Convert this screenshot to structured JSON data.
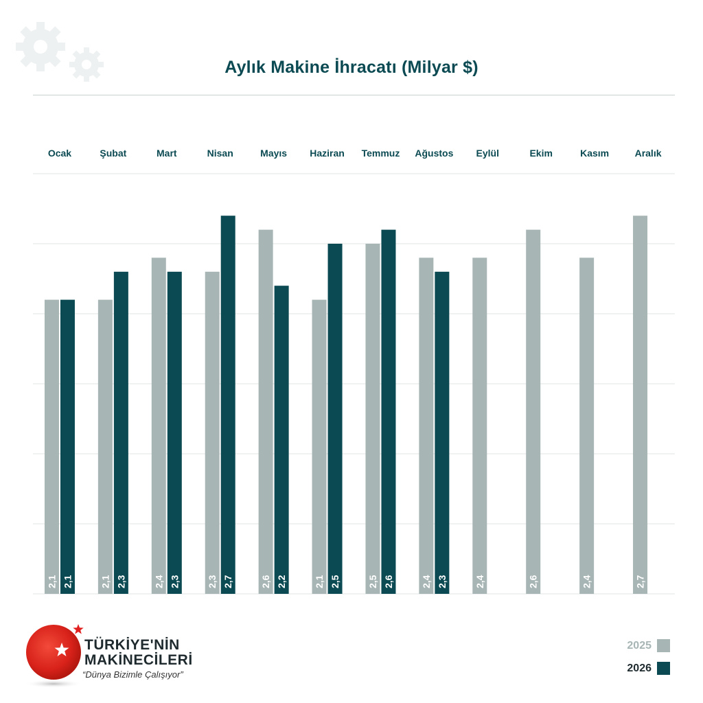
{
  "title": "Aylık Makine İhracatı (Milyar $)",
  "chart_data": {
    "type": "bar",
    "categories": [
      "Ocak",
      "Şubat",
      "Mart",
      "Nisan",
      "Mayıs",
      "Haziran",
      "Temmuz",
      "Ağustos",
      "Eylül",
      "Ekim",
      "Kasım",
      "Aralık"
    ],
    "series": [
      {
        "name": "2025",
        "color": "#a8b5b5",
        "values": [
          2.1,
          2.1,
          2.4,
          2.3,
          2.6,
          2.1,
          2.5,
          2.4,
          2.4,
          2.6,
          2.4,
          2.7
        ]
      },
      {
        "name": "2026",
        "color": "#0b4a52",
        "values": [
          2.1,
          2.3,
          2.3,
          2.7,
          2.2,
          2.5,
          2.6,
          2.3,
          null,
          null,
          null,
          null
        ]
      }
    ],
    "value_labels": {
      "2025": [
        "2,1",
        "2,1",
        "2,4",
        "2,3",
        "2,6",
        "2,1",
        "2,5",
        "2,4",
        "2,4",
        "2,6",
        "2,4",
        "2,7"
      ],
      "2026": [
        "2,1",
        "2,3",
        "2,3",
        "2,7",
        "2,2",
        "2,5",
        "2,6",
        "2,3",
        null,
        null,
        null,
        null
      ]
    },
    "ylim": [
      0,
      3
    ],
    "grid": true,
    "legend_position": "bottom-right"
  },
  "legend": [
    {
      "label": "2025",
      "color": "#a8b5b5"
    },
    {
      "label": "2026",
      "color": "#0b4a52"
    }
  ],
  "logo": {
    "line1": "TÜRKİYE'NİN",
    "line2": "MAKİNECİLERİ",
    "slogan": "“Dünya Bizimle Çalışıyor”"
  },
  "icons": {
    "background": "gear-icon",
    "logo": "turkish-flag-sphere-icon"
  }
}
